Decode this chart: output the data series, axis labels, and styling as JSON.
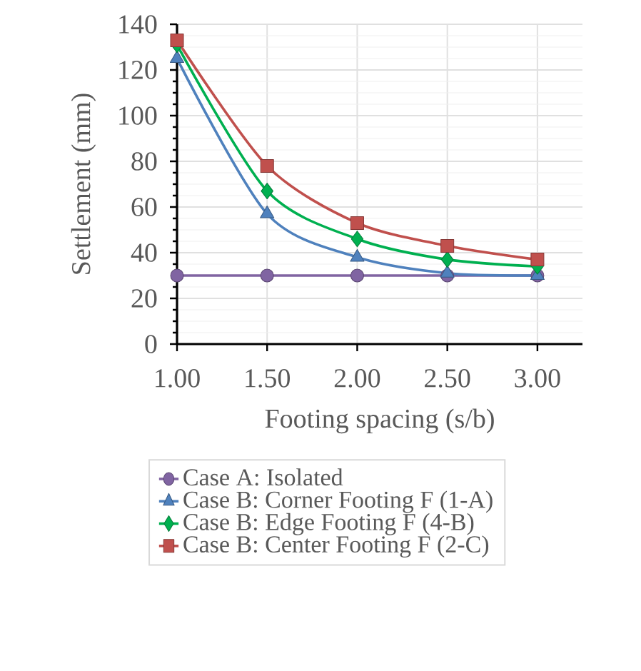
{
  "chart_data": {
    "type": "line",
    "xlabel": "Footing spacing (s/b)",
    "ylabel": "Settlement (mm)",
    "x": [
      1,
      1.5,
      2,
      2.5,
      3
    ],
    "xlim": [
      1,
      3.25
    ],
    "xticks": [
      {
        "value": 1,
        "label": "1.00"
      },
      {
        "value": 1.5,
        "label": "1.50"
      },
      {
        "value": 2,
        "label": "2.00"
      },
      {
        "value": 2.5,
        "label": "2.50"
      },
      {
        "value": 3,
        "label": "3.00"
      }
    ],
    "ylim": [
      0,
      140
    ],
    "yticks": [
      0,
      20,
      40,
      60,
      80,
      100,
      120,
      140
    ],
    "grid": true,
    "legend": "bottom",
    "series": [
      {
        "name": "Case A: Isolated",
        "color": "#8064a2",
        "marker": "circle",
        "values": [
          30,
          30,
          30,
          30,
          30
        ]
      },
      {
        "name": "Case B: Corner Footing F (1-A)",
        "color": "#4f81bd",
        "marker": "triangle",
        "values": [
          125,
          57,
          38,
          31,
          30
        ]
      },
      {
        "name": "Case B: Edge Footing F (4-B)",
        "color": "#00b050",
        "marker": "diamond",
        "values": [
          131,
          67,
          46,
          37,
          34
        ]
      },
      {
        "name": "Case B: Center Footing F (2-C)",
        "color": "#c0504d",
        "marker": "square",
        "values": [
          133,
          78,
          53,
          43,
          37
        ]
      }
    ]
  }
}
